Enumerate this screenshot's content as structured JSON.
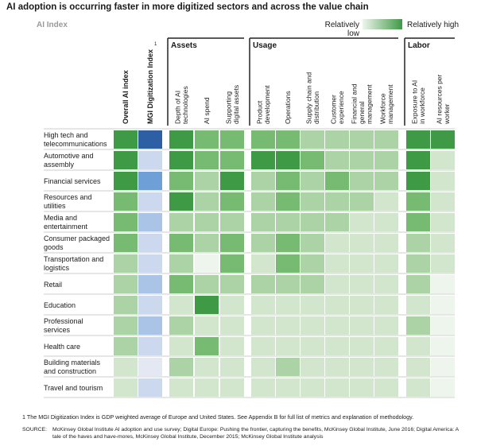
{
  "title": "AI adoption is occurring faster in more digitized sectors and across the value chain",
  "subtitle": "AI Index",
  "legend": {
    "low": "Relatively low",
    "high": "Relatively high",
    "low_color": "#eef5ec",
    "high_color": "#3e9a45"
  },
  "chart_data": {
    "type": "heatmap",
    "scale": "1 = relatively low, 5 = relatively high",
    "groups": [
      {
        "label": "",
        "columns": [
          0,
          1
        ]
      },
      {
        "label": "Assets",
        "columns": [
          2,
          3,
          4
        ]
      },
      {
        "label": "Usage",
        "columns": [
          5,
          6,
          7,
          8,
          9,
          10
        ]
      },
      {
        "label": "Labor",
        "columns": [
          11,
          12
        ]
      }
    ],
    "columns": [
      {
        "label": "Overall AI index",
        "bold": true
      },
      {
        "label": "MGI Digitization Index",
        "bold": true,
        "footnote_mark": "1",
        "palette": "blue"
      },
      {
        "label": "Depth of AI technologies"
      },
      {
        "label": "AI spend"
      },
      {
        "label": "Supporting digital assets"
      },
      {
        "label": "Product development"
      },
      {
        "label": "Operations"
      },
      {
        "label": "Supply chain and distribution"
      },
      {
        "label": "Customer experience"
      },
      {
        "label": "Financial and general management"
      },
      {
        "label": "Workforce management"
      },
      {
        "label": "Exposure to AI in workforce"
      },
      {
        "label": "AI resources per worker"
      }
    ],
    "rows": [
      {
        "label": "High tech and telecommunications",
        "values": [
          5,
          5,
          5,
          4,
          4,
          4,
          4,
          3,
          3,
          3,
          3,
          5,
          5
        ]
      },
      {
        "label": "Automotive and assembly",
        "values": [
          5,
          2,
          5,
          4,
          4,
          5,
          5,
          4,
          3,
          3,
          3,
          5,
          2
        ]
      },
      {
        "label": "Financial services",
        "values": [
          5,
          4,
          4,
          3,
          5,
          3,
          4,
          3,
          4,
          3,
          3,
          5,
          2
        ]
      },
      {
        "label": "Resources and utilities",
        "values": [
          4,
          2,
          5,
          3,
          4,
          3,
          4,
          3,
          3,
          3,
          2,
          4,
          2
        ]
      },
      {
        "label": "Media and entertainment",
        "values": [
          4,
          3,
          3,
          3,
          3,
          3,
          3,
          3,
          3,
          2,
          2,
          4,
          2
        ]
      },
      {
        "label": "Consumer packaged goods",
        "values": [
          4,
          2,
          4,
          3,
          4,
          3,
          4,
          3,
          2,
          2,
          2,
          3,
          2
        ]
      },
      {
        "label": "Transportation and logistics",
        "values": [
          3,
          2,
          3,
          1,
          4,
          2,
          4,
          3,
          2,
          2,
          2,
          3,
          2
        ]
      },
      {
        "label": "Retail",
        "values": [
          3,
          3,
          4,
          3,
          3,
          3,
          3,
          3,
          2,
          2,
          2,
          3,
          1
        ]
      },
      {
        "label": "Education",
        "values": [
          3,
          2,
          2,
          5,
          2,
          2,
          2,
          2,
          2,
          2,
          2,
          2,
          1
        ]
      },
      {
        "label": "Professional services",
        "values": [
          3,
          3,
          3,
          2,
          2,
          2,
          2,
          2,
          2,
          2,
          2,
          3,
          1
        ]
      },
      {
        "label": "Health care",
        "values": [
          3,
          2,
          2,
          4,
          2,
          2,
          2,
          2,
          2,
          2,
          2,
          2,
          1
        ]
      },
      {
        "label": "Building materials and construction",
        "values": [
          2,
          1,
          3,
          2,
          2,
          2,
          3,
          2,
          2,
          2,
          2,
          2,
          1
        ]
      },
      {
        "label": "Travel and tourism",
        "values": [
          2,
          2,
          2,
          2,
          2,
          2,
          2,
          2,
          2,
          2,
          2,
          2,
          1
        ]
      }
    ],
    "palettes": {
      "green": [
        "#eef5ec",
        "#d2e6ce",
        "#acd3a6",
        "#77bb72",
        "#3e9a45"
      ],
      "blue": [
        "#e3e8f3",
        "#cbd8ed",
        "#a9c4e6",
        "#6e9fd6",
        "#2c5fa3"
      ]
    }
  },
  "footnote": "1  The MGI Digitization Index is GDP weighted average of Europe and United States. See Appendix B for full list of metrics and explanation of methodology.",
  "source": {
    "label": "SOURCE:",
    "text": "McKinsey Global Institute AI adoption and use survey; Digital Europe: Pushing the frontier, capturing the benefits, McKinsey Global Institute, June 2016; Digital America: A tale of the haves and have-mores, McKinsey Global Institute, December 2015; McKinsey Global Institute analysis"
  }
}
